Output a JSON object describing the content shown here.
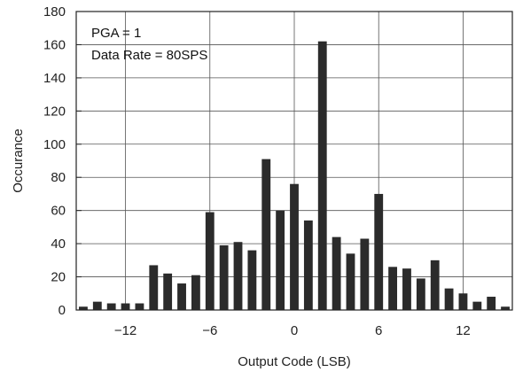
{
  "chart_data": {
    "type": "bar",
    "xlabel": "Output Code (LSB)",
    "ylabel": "Occurance",
    "xlim": [
      -15.5,
      15.5
    ],
    "ylim": [
      0,
      180
    ],
    "xticks": [
      -12,
      -6,
      0,
      6,
      12
    ],
    "xtick_labels": [
      "−12",
      "−6",
      "0",
      "6",
      "12"
    ],
    "yticks": [
      0,
      20,
      40,
      60,
      80,
      100,
      120,
      140,
      160,
      180
    ],
    "grid": true,
    "annotations": [
      "PGA = 1",
      "Data Rate = 80SPS"
    ],
    "bar_color": "#2b2b2b",
    "x": [
      -15,
      -14,
      -13,
      -12,
      -11,
      -10,
      -9,
      -8,
      -7,
      -6,
      -5,
      -4,
      -3,
      -2,
      -1,
      0,
      1,
      2,
      3,
      4,
      5,
      6,
      7,
      8,
      9,
      10,
      11,
      12,
      13,
      14,
      15
    ],
    "values": [
      2,
      5,
      4,
      4,
      4,
      27,
      22,
      16,
      21,
      59,
      39,
      41,
      36,
      91,
      60,
      76,
      54,
      162,
      44,
      34,
      43,
      70,
      26,
      25,
      19,
      30,
      13,
      10,
      5,
      8,
      2
    ]
  }
}
